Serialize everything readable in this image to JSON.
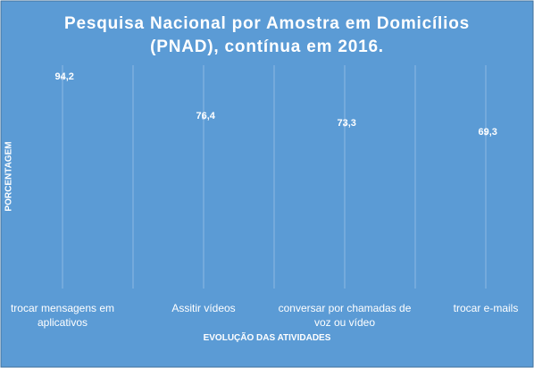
{
  "chart_data": {
    "type": "line",
    "title": "Pesquisa Nacional por Amostra em Domicílios (PNAD), contínua em 2016.",
    "x_label": "EVOLUÇÃO DAS ATIVIDADES",
    "y_label": "PORCENTAGEM",
    "categories": [
      "trocar mensagens em aplicativos",
      "Assitir vídeos",
      "conversar por chamadas de voz ou vídeo",
      "trocar e-mails"
    ],
    "values": [
      94.2,
      76.4,
      73.3,
      69.3
    ],
    "value_labels": [
      "94,2",
      "76,4",
      "73,3",
      "69,3"
    ],
    "color": "#a9c9ea",
    "ylim": [
      0,
      100
    ],
    "grid": true
  }
}
